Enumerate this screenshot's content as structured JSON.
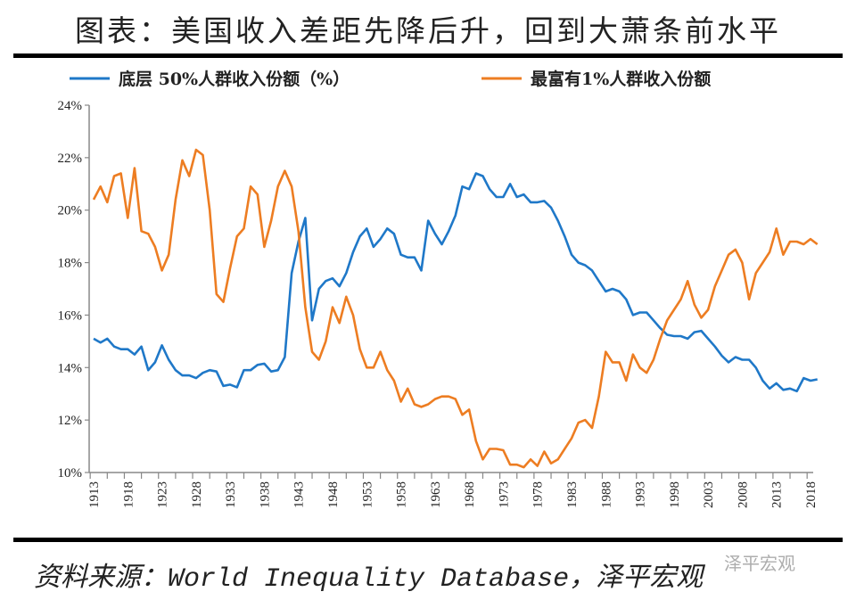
{
  "title": "图表：美国收入差距先降后升，回到大萧条前水平",
  "source": "资料来源：World Inequality Database，泽平宏观",
  "watermark": "泽平宏观",
  "chart_data": {
    "type": "line",
    "title": "图表：美国收入差距先降后升，回到大萧条前水平",
    "xlabel": "",
    "ylabel": "",
    "xlim": [
      1913,
      2019
    ],
    "ylim": [
      10,
      24
    ],
    "yticks": [
      "10%",
      "12%",
      "14%",
      "16%",
      "18%",
      "20%",
      "22%",
      "24%"
    ],
    "yticks_values": [
      10,
      12,
      14,
      16,
      18,
      20,
      22,
      24
    ],
    "xticks": [
      "1913",
      "1918",
      "1923",
      "1928",
      "1933",
      "1938",
      "1943",
      "1948",
      "1953",
      "1958",
      "1963",
      "1968",
      "1973",
      "1978",
      "1983",
      "1988",
      "1993",
      "1998",
      "2003",
      "2008",
      "2013",
      "2018"
    ],
    "legend_position": "top",
    "grid": false,
    "x_start": 1913,
    "series": [
      {
        "name": "底层 50%人群收入份额（%）",
        "color": "#1F78C8",
        "values": [
          15.1,
          14.95,
          15.1,
          14.8,
          14.7,
          14.7,
          14.5,
          14.8,
          13.9,
          14.2,
          14.85,
          14.3,
          13.9,
          13.7,
          13.7,
          13.6,
          13.8,
          13.9,
          13.85,
          13.3,
          13.35,
          13.25,
          13.9,
          13.9,
          14.1,
          14.15,
          13.85,
          13.9,
          14.4,
          17.6,
          18.8,
          19.7,
          15.8,
          17.0,
          17.3,
          17.4,
          17.1,
          17.6,
          18.4,
          19.0,
          19.3,
          18.6,
          18.9,
          19.3,
          19.1,
          18.3,
          18.2,
          18.2,
          17.7,
          19.6,
          19.1,
          18.7,
          19.2,
          19.8,
          20.9,
          20.8,
          21.4,
          21.3,
          20.8,
          20.5,
          20.5,
          21.0,
          20.5,
          20.6,
          20.3,
          20.3,
          20.35,
          20.1,
          19.6,
          19.0,
          18.3,
          18.0,
          17.9,
          17.7,
          17.3,
          16.9,
          17.0,
          16.9,
          16.6,
          16.0,
          16.1,
          16.1,
          15.8,
          15.5,
          15.25,
          15.2,
          15.2,
          15.1,
          15.35,
          15.4,
          15.1,
          14.8,
          14.45,
          14.2,
          14.4,
          14.3,
          14.3,
          14.0,
          13.5,
          13.2,
          13.4,
          13.15,
          13.2,
          13.1,
          13.6,
          13.5,
          13.55
        ]
      },
      {
        "name": "最富有1%人群收入份额",
        "color": "#ED7D22",
        "values": [
          20.4,
          20.9,
          20.3,
          21.3,
          21.4,
          19.7,
          21.6,
          19.2,
          19.1,
          18.6,
          17.7,
          18.3,
          20.4,
          21.9,
          21.3,
          22.3,
          22.1,
          20.0,
          16.8,
          16.5,
          17.8,
          19.0,
          19.3,
          20.9,
          20.6,
          18.6,
          19.6,
          20.9,
          21.5,
          20.9,
          19.2,
          16.3,
          14.6,
          14.3,
          15.0,
          16.3,
          15.7,
          16.7,
          16.0,
          14.7,
          14.0,
          14.0,
          14.6,
          13.9,
          13.5,
          12.7,
          13.2,
          12.6,
          12.5,
          12.6,
          12.8,
          12.9,
          12.9,
          12.8,
          12.2,
          12.4,
          11.2,
          10.5,
          10.9,
          10.9,
          10.85,
          10.3,
          10.3,
          10.2,
          10.5,
          10.25,
          10.8,
          10.35,
          10.5,
          10.9,
          11.3,
          11.9,
          12.0,
          11.7,
          12.9,
          14.6,
          14.2,
          14.2,
          13.5,
          14.5,
          14.0,
          13.8,
          14.3,
          15.1,
          15.8,
          16.2,
          16.6,
          17.3,
          16.4,
          15.9,
          16.2,
          17.1,
          17.7,
          18.3,
          18.5,
          18.0,
          16.6,
          17.6,
          18.0,
          18.4,
          19.3,
          18.3,
          18.8,
          18.8,
          18.7,
          18.9,
          18.7
        ]
      }
    ]
  }
}
